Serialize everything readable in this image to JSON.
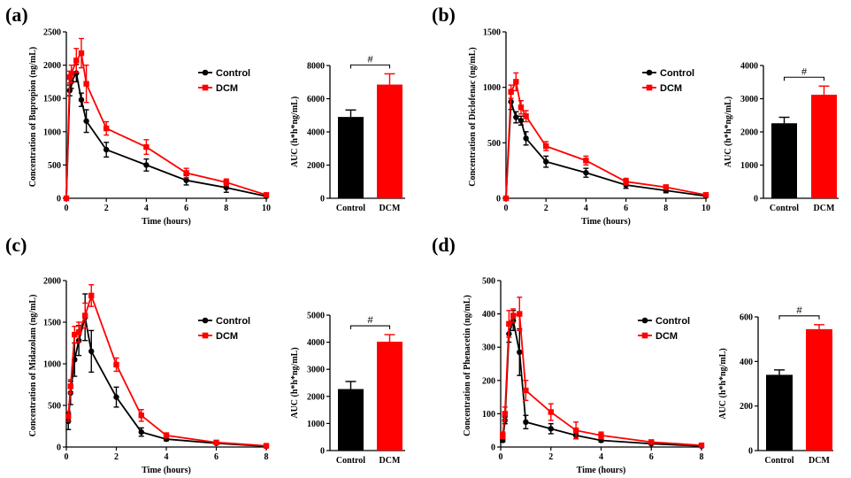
{
  "chart_data": [
    {
      "panel": "(a)",
      "line": {
        "type": "line",
        "ylabel": "Concentration of Bupropion (ng/mL)",
        "xlabel": "Time (hours)",
        "xlim": [
          0,
          10
        ],
        "xticks": [
          0,
          2,
          4,
          6,
          8,
          10
        ],
        "ylim": [
          0,
          2500
        ],
        "yticks": [
          0,
          500,
          1000,
          1500,
          2000,
          2500
        ],
        "legend": "top-right",
        "series": [
          {
            "name": "Control",
            "color": "#000000",
            "x": [
              0,
              0.17,
              0.25,
              0.5,
              0.75,
              1,
              2,
              4,
              6,
              8,
              10
            ],
            "y": [
              0,
              1620,
              1750,
              1880,
              1480,
              1160,
              730,
              500,
              270,
              160,
              30
            ],
            "err": [
              0,
              80,
              100,
              130,
              100,
              170,
              110,
              90,
              70,
              70,
              15
            ]
          },
          {
            "name": "DCM",
            "color": "#ff0000",
            "x": [
              0,
              0.17,
              0.25,
              0.5,
              0.75,
              1,
              2,
              4,
              6,
              8,
              10
            ],
            "y": [
              0,
              1820,
              1870,
              2070,
              2180,
              1720,
              1050,
              770,
              380,
              240,
              50
            ],
            "err": [
              0,
              90,
              130,
              180,
              220,
              280,
              100,
              110,
              70,
              50,
              15
            ]
          }
        ]
      },
      "bar": {
        "type": "bar",
        "ylabel": "AUC (h*h*ng/mL)",
        "ylim": [
          0,
          8000
        ],
        "yticks": [
          0,
          2000,
          4000,
          6000,
          8000
        ],
        "categories": [
          "Control",
          "DCM"
        ],
        "values": [
          4900,
          6850
        ],
        "err": [
          420,
          650
        ],
        "colors": [
          "#000000",
          "#ff0000"
        ],
        "annotation": "#"
      }
    },
    {
      "panel": "(b)",
      "line": {
        "type": "line",
        "ylabel": "Concentration of Diclofenac (ng/mL)",
        "xlabel": "Time (hours)",
        "xlim": [
          0,
          10
        ],
        "xticks": [
          0,
          2,
          4,
          6,
          8,
          10
        ],
        "ylim": [
          0,
          1500
        ],
        "yticks": [
          0,
          500,
          1000,
          1500
        ],
        "legend": "top-right",
        "series": [
          {
            "name": "Control",
            "color": "#000000",
            "x": [
              0,
              0.25,
              0.5,
              0.75,
              1,
              2,
              4,
              6,
              8,
              10
            ],
            "y": [
              0,
              870,
              730,
              700,
              540,
              330,
              230,
              120,
              70,
              20
            ],
            "err": [
              0,
              70,
              50,
              40,
              60,
              50,
              40,
              30,
              20,
              10
            ]
          },
          {
            "name": "DCM",
            "color": "#ff0000",
            "x": [
              0,
              0.25,
              0.5,
              0.75,
              1,
              2,
              4,
              6,
              8,
              10
            ],
            "y": [
              0,
              960,
              1050,
              820,
              740,
              470,
              340,
              150,
              100,
              30
            ],
            "err": [
              0,
              60,
              80,
              60,
              50,
              40,
              40,
              30,
              20,
              10
            ]
          }
        ]
      },
      "bar": {
        "type": "bar",
        "ylabel": "AUC (h*h*ng/mL)",
        "ylim": [
          0,
          4000
        ],
        "yticks": [
          0,
          1000,
          2000,
          3000,
          4000
        ],
        "categories": [
          "Control",
          "DCM"
        ],
        "values": [
          2260,
          3120
        ],
        "err": [
          180,
          260
        ],
        "colors": [
          "#000000",
          "#ff0000"
        ],
        "annotation": "#"
      }
    },
    {
      "panel": "(c)",
      "line": {
        "type": "line",
        "ylabel": "Concentration of Midazolam (ng/mL)",
        "xlabel": "Time (hours)",
        "xlim": [
          0,
          8
        ],
        "xticks": [
          0,
          2,
          4,
          6,
          8
        ],
        "ylim": [
          0,
          2000
        ],
        "yticks": [
          0,
          500,
          1000,
          1500,
          2000
        ],
        "legend": "top-right",
        "series": [
          {
            "name": "Control",
            "color": "#000000",
            "x": [
              0.08,
              0.17,
              0.33,
              0.5,
              0.75,
              1,
              2,
              3,
              4,
              6,
              8
            ],
            "y": [
              310,
              650,
              1050,
              1280,
              1560,
              1150,
              600,
              180,
              95,
              45,
              10
            ],
            "err": [
              100,
              140,
              200,
              180,
              280,
              250,
              120,
              50,
              20,
              10,
              5
            ]
          },
          {
            "name": "DCM",
            "color": "#ff0000",
            "x": [
              0.08,
              0.17,
              0.33,
              0.5,
              0.75,
              1,
              2,
              3,
              4,
              6,
              8
            ],
            "y": [
              370,
              730,
              1350,
              1380,
              1580,
              1820,
              990,
              380,
              140,
              55,
              15
            ],
            "err": [
              60,
              80,
              100,
              120,
              150,
              130,
              80,
              70,
              30,
              20,
              5
            ]
          }
        ]
      },
      "bar": {
        "type": "bar",
        "ylabel": "AUC (h*h*ng/mL)",
        "ylim": [
          0,
          5000
        ],
        "yticks": [
          0,
          1000,
          2000,
          3000,
          4000,
          5000
        ],
        "categories": [
          "Control",
          "DCM"
        ],
        "values": [
          2270,
          4020
        ],
        "err": [
          280,
          260
        ],
        "colors": [
          "#000000",
          "#ff0000"
        ],
        "annotation": "#"
      }
    },
    {
      "panel": "(d)",
      "line": {
        "type": "line",
        "ylabel": "Concentration of Phenacetin (ng/mL)",
        "xlabel": "Time (hours)",
        "xlim": [
          0,
          8
        ],
        "xticks": [
          0,
          2,
          4,
          6,
          8
        ],
        "ylim": [
          0,
          500
        ],
        "yticks": [
          0,
          100,
          200,
          300,
          400,
          500
        ],
        "legend": "top-right",
        "series": [
          {
            "name": "Control",
            "color": "#000000",
            "x": [
              0.08,
              0.17,
              0.33,
              0.5,
              0.75,
              1,
              2,
              3,
              4,
              6,
              8
            ],
            "y": [
              20,
              80,
              340,
              380,
              285,
              75,
              55,
              35,
              20,
              10,
              3
            ],
            "err": [
              5,
              10,
              25,
              30,
              70,
              20,
              15,
              10,
              5,
              3,
              1
            ]
          },
          {
            "name": "DCM",
            "color": "#ff0000",
            "x": [
              0.08,
              0.17,
              0.33,
              0.5,
              0.75,
              1,
              2,
              3,
              4,
              6,
              8
            ],
            "y": [
              35,
              100,
              370,
              395,
              400,
              170,
              105,
              50,
              35,
              15,
              5
            ],
            "err": [
              10,
              20,
              40,
              20,
              50,
              30,
              25,
              25,
              10,
              5,
              2
            ]
          }
        ]
      },
      "bar": {
        "type": "bar",
        "ylabel": "AUC (h*h*ng/mL)",
        "ylim": [
          0,
          600
        ],
        "yticks": [
          0,
          200,
          400,
          600
        ],
        "categories": [
          "Control",
          "DCM"
        ],
        "values": [
          340,
          545
        ],
        "err": [
          22,
          20
        ],
        "colors": [
          "#000000",
          "#ff0000"
        ],
        "annotation": "#"
      }
    }
  ]
}
